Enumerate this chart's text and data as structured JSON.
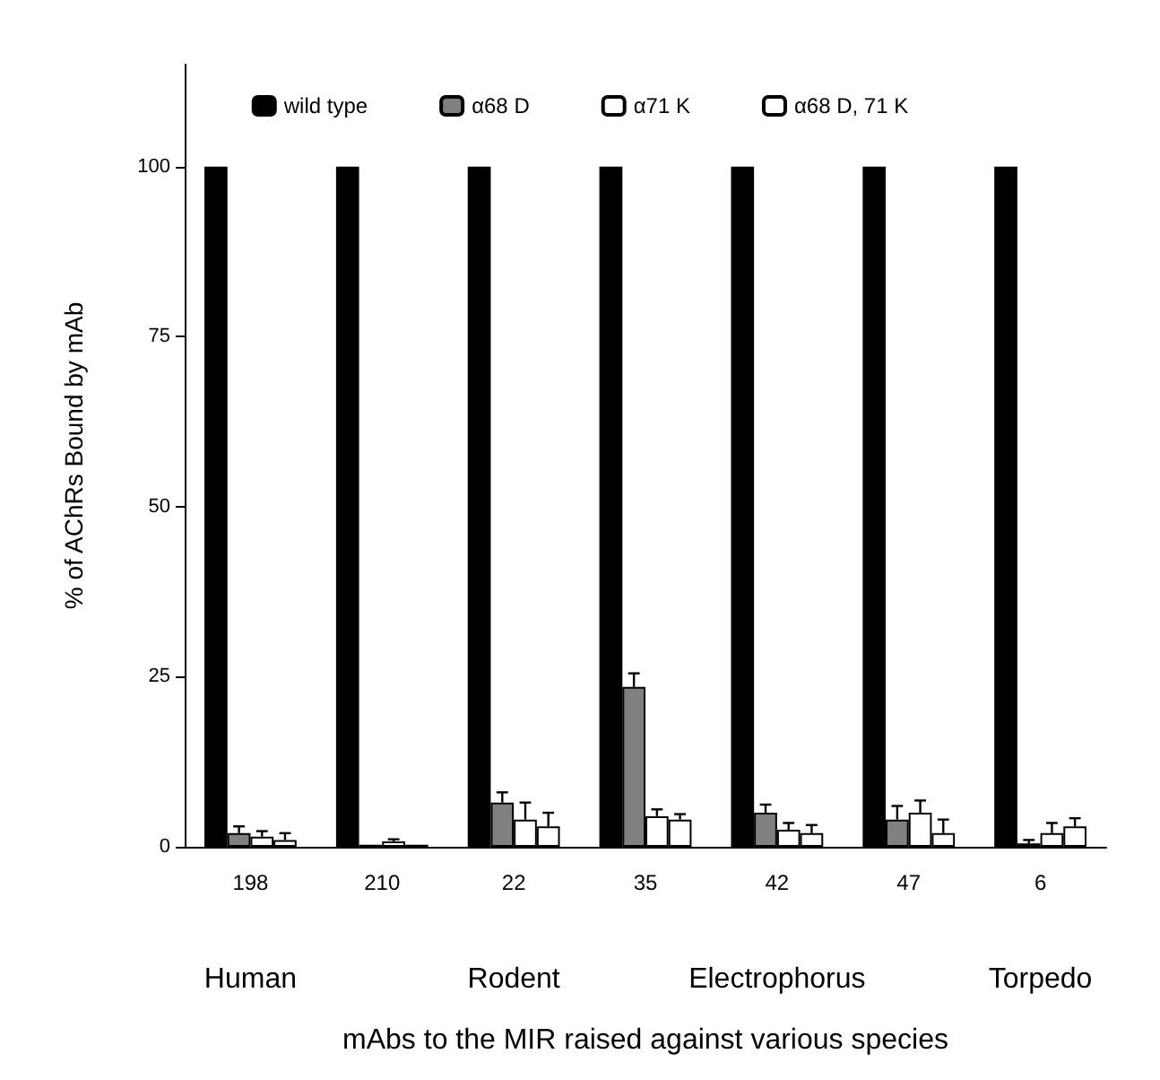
{
  "chart_data": {
    "type": "bar",
    "xlabel": "mAbs to the MIR raised against various species",
    "ylabel": "% of AChRs Bound by mAb",
    "categories": [
      "198",
      "210",
      "22",
      "35",
      "42",
      "47",
      "6"
    ],
    "series": [
      {
        "name": "wild type",
        "color": "#000000",
        "values": [
          100,
          100,
          100,
          100,
          100,
          100,
          100
        ]
      },
      {
        "name": "α68 D",
        "color": "#808080",
        "values": [
          2,
          0.3,
          6.5,
          23.5,
          5,
          4,
          0.5
        ],
        "errors": [
          1,
          null,
          1.5,
          2,
          1.2,
          2,
          0.5
        ]
      },
      {
        "name": "α71 K",
        "color": "#ffffff",
        "values": [
          1.5,
          0.8,
          4,
          4.5,
          2.5,
          5,
          2
        ],
        "errors": [
          0.8,
          0.3,
          2.5,
          1,
          1,
          1.8,
          1.5
        ]
      },
      {
        "name": "α68 D, 71 K",
        "color": "#ffffff",
        "values": [
          1,
          0.3,
          3,
          4,
          2,
          2,
          3
        ],
        "errors": [
          1,
          null,
          2,
          0.8,
          1.2,
          2,
          1.2
        ]
      }
    ],
    "ylim": [
      0,
      115
    ],
    "yticks": [
      0,
      25,
      50,
      75,
      100
    ],
    "grid": false,
    "legend": "top",
    "annotations": [
      "Human",
      "Rodent",
      "Electrophorus",
      "Torpedo"
    ]
  }
}
